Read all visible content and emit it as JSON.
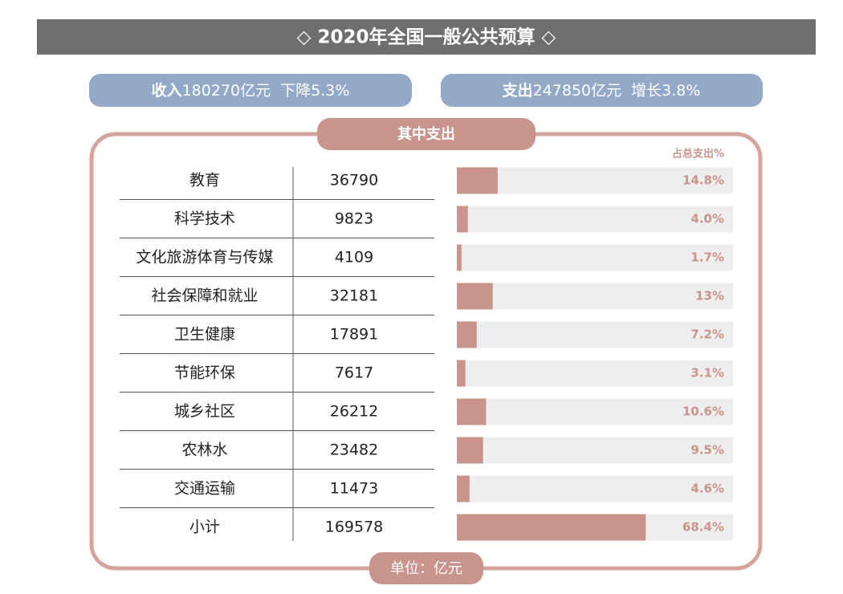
{
  "header": {
    "title": "◇ 2020年全国一般公共预算 ◇"
  },
  "summary": {
    "income": {
      "label": "收入",
      "amount": "180270亿元",
      "change": "下降5.3%"
    },
    "expense": {
      "label": "支出",
      "amount": "247850亿元",
      "change": "增长3.8%"
    }
  },
  "chart_data": {
    "type": "bar",
    "title": "其中支出",
    "value_header": "占总支出%",
    "unit": "单位：亿元",
    "categories": [
      "教育",
      "科学技术",
      "文化旅游体育与传媒",
      "社会保障和就业",
      "卫生健康",
      "节能环保",
      "城乡社区",
      "农林水",
      "交通运输",
      "小计"
    ],
    "amounts": [
      36790,
      9823,
      4109,
      32181,
      17891,
      7617,
      26212,
      23482,
      11473,
      169578
    ],
    "values": [
      14.8,
      4.0,
      1.7,
      13,
      7.2,
      3.1,
      10.6,
      9.5,
      4.6,
      68.4
    ],
    "value_labels": [
      "14.8%",
      "4.0%",
      "1.7%",
      "13%",
      "7.2%",
      "3.1%",
      "10.6%",
      "9.5%",
      "4.6%",
      "68.4%"
    ],
    "xlim": [
      0,
      100
    ],
    "color": "#c9948c",
    "track_color": "#eeeeee"
  }
}
